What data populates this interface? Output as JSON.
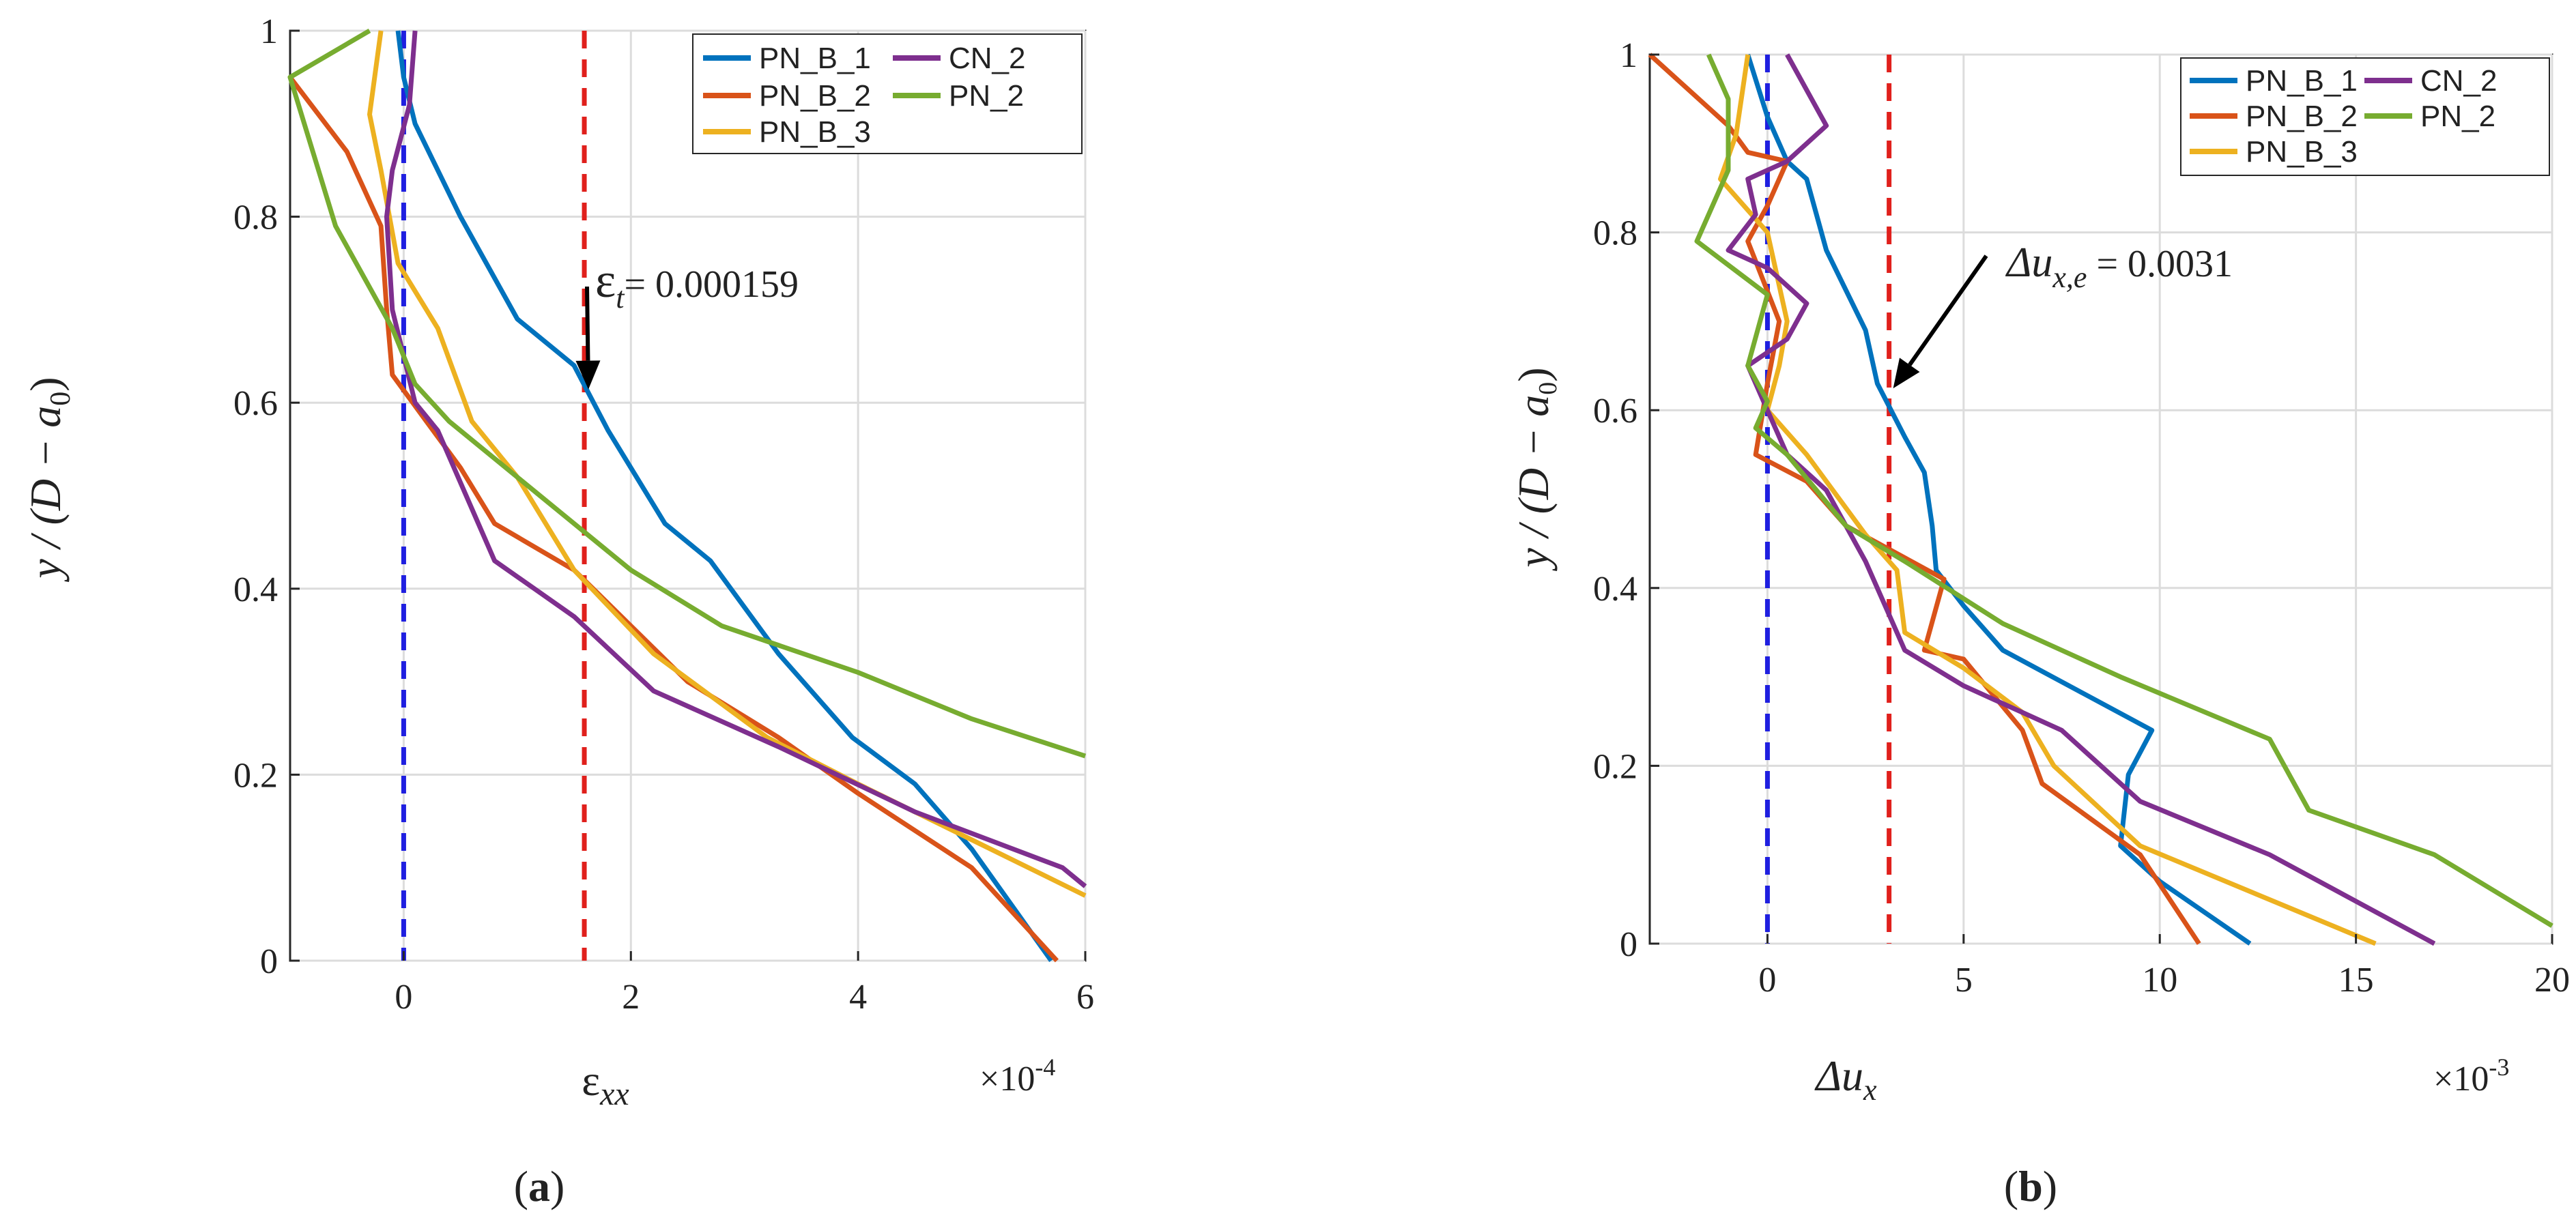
{
  "chart_data": [
    {
      "type": "line",
      "panel": "a",
      "caption": {
        "open": "(",
        "letter": "a",
        "close": ")"
      },
      "xlabel": {
        "base": "ε",
        "sub": "xx"
      },
      "ylabel": {
        "pre": "y / (D − a",
        "sub": "0",
        "post": ")"
      },
      "xlim": [
        -1,
        6
      ],
      "ylim": [
        0,
        1
      ],
      "xticks": [
        "0",
        "2",
        "4",
        "6"
      ],
      "xtick_values": [
        0,
        2,
        4,
        6
      ],
      "yticks": [
        "0",
        "0.2",
        "0.4",
        "0.6",
        "0.8",
        "1"
      ],
      "ytick_values": [
        0,
        0.2,
        0.4,
        0.6,
        0.8,
        1
      ],
      "multiplier": {
        "base": "×10",
        "exp": "-4"
      },
      "ref_lines": [
        {
          "x": 0,
          "color": "#1f1fe0"
        },
        {
          "x": 1.59,
          "color": "#e0201c"
        }
      ],
      "annotation": {
        "sym": "ε",
        "sub": "t",
        "text": "= 0.000159",
        "point": [
          1.59,
          0.61
        ]
      },
      "legend_position": "top-right",
      "series": [
        {
          "name": "PN_B_1",
          "color": "#0072BD",
          "points": [
            [
              -0.05,
              1.0
            ],
            [
              0.0,
              0.95
            ],
            [
              0.1,
              0.9
            ],
            [
              0.5,
              0.8
            ],
            [
              1.0,
              0.69
            ],
            [
              1.5,
              0.64
            ],
            [
              1.8,
              0.57
            ],
            [
              2.3,
              0.47
            ],
            [
              2.7,
              0.43
            ],
            [
              3.3,
              0.33
            ],
            [
              3.95,
              0.24
            ],
            [
              4.5,
              0.19
            ],
            [
              5.0,
              0.12
            ],
            [
              5.7,
              0.0
            ]
          ]
        },
        {
          "name": "PN_B_2",
          "color": "#D95319",
          "points": [
            [
              -1.0,
              0.95
            ],
            [
              -0.5,
              0.87
            ],
            [
              -0.2,
              0.79
            ],
            [
              -0.15,
              0.7
            ],
            [
              -0.1,
              0.63
            ],
            [
              0.2,
              0.58
            ],
            [
              0.5,
              0.53
            ],
            [
              0.8,
              0.47
            ],
            [
              1.5,
              0.42
            ],
            [
              2.5,
              0.3
            ],
            [
              3.3,
              0.24
            ],
            [
              4.0,
              0.18
            ],
            [
              5.0,
              0.1
            ],
            [
              5.75,
              0.0
            ]
          ]
        },
        {
          "name": "PN_B_3",
          "color": "#EDB120",
          "points": [
            [
              -0.2,
              1.0
            ],
            [
              -0.3,
              0.91
            ],
            [
              -0.2,
              0.85
            ],
            [
              -0.05,
              0.75
            ],
            [
              0.3,
              0.68
            ],
            [
              0.6,
              0.58
            ],
            [
              1.0,
              0.52
            ],
            [
              1.5,
              0.42
            ],
            [
              2.2,
              0.33
            ],
            [
              3.2,
              0.24
            ],
            [
              4.0,
              0.19
            ],
            [
              5.0,
              0.13
            ],
            [
              6.0,
              0.07
            ]
          ]
        },
        {
          "name": "CN_2",
          "color": "#7E2F8E",
          "points": [
            [
              0.1,
              1.0
            ],
            [
              0.05,
              0.92
            ],
            [
              -0.1,
              0.85
            ],
            [
              -0.15,
              0.8
            ],
            [
              -0.1,
              0.7
            ],
            [
              0.1,
              0.6
            ],
            [
              0.3,
              0.57
            ],
            [
              0.8,
              0.43
            ],
            [
              1.5,
              0.37
            ],
            [
              2.2,
              0.29
            ],
            [
              3.3,
              0.23
            ],
            [
              4.5,
              0.16
            ],
            [
              5.8,
              0.1
            ],
            [
              6.0,
              0.08
            ]
          ]
        },
        {
          "name": "PN_2",
          "color": "#77AC30",
          "points": [
            [
              -0.3,
              1.0
            ],
            [
              -1.0,
              0.95
            ],
            [
              -0.6,
              0.79
            ],
            [
              -0.1,
              0.68
            ],
            [
              0.1,
              0.62
            ],
            [
              0.4,
              0.58
            ],
            [
              1.2,
              0.5
            ],
            [
              2.0,
              0.42
            ],
            [
              2.8,
              0.36
            ],
            [
              4.0,
              0.31
            ],
            [
              5.0,
              0.26
            ],
            [
              6.0,
              0.22
            ]
          ]
        }
      ]
    },
    {
      "type": "line",
      "panel": "b",
      "caption": {
        "open": "(",
        "letter": "b",
        "close": ")"
      },
      "xlabel": {
        "base": "Δu",
        "sub": "x"
      },
      "ylabel": {
        "pre": "y / (D − a",
        "sub": "0",
        "post": ")"
      },
      "xlim": [
        -3,
        20
      ],
      "ylim": [
        0,
        1
      ],
      "xticks": [
        "0",
        "5",
        "10",
        "15",
        "20"
      ],
      "xtick_values": [
        0,
        5,
        10,
        15,
        20
      ],
      "yticks": [
        "0",
        "0.2",
        "0.4",
        "0.6",
        "0.8",
        "1"
      ],
      "ytick_values": [
        0,
        0.2,
        0.4,
        0.6,
        0.8,
        1
      ],
      "multiplier": {
        "base": "×10",
        "exp": "-3"
      },
      "ref_lines": [
        {
          "x": 0,
          "color": "#1f1fe0"
        },
        {
          "x": 3.1,
          "color": "#e0201c"
        }
      ],
      "annotation": {
        "sym": "Δu",
        "sub": "x,e",
        "text": " = 0.0031",
        "point": [
          3.1,
          0.62
        ]
      },
      "legend_position": "top-right",
      "series": [
        {
          "name": "PN_B_1",
          "color": "#0072BD",
          "points": [
            [
              -0.5,
              1.0
            ],
            [
              0.0,
              0.93
            ],
            [
              0.5,
              0.88
            ],
            [
              1.0,
              0.86
            ],
            [
              1.5,
              0.78
            ],
            [
              2.5,
              0.69
            ],
            [
              2.8,
              0.63
            ],
            [
              3.5,
              0.57
            ],
            [
              4.0,
              0.53
            ],
            [
              4.2,
              0.47
            ],
            [
              4.3,
              0.42
            ],
            [
              5.0,
              0.38
            ],
            [
              6.0,
              0.33
            ],
            [
              9.8,
              0.24
            ],
            [
              9.2,
              0.19
            ],
            [
              9.0,
              0.11
            ],
            [
              10.0,
              0.07
            ],
            [
              12.3,
              0.0
            ]
          ]
        },
        {
          "name": "PN_B_2",
          "color": "#D95319",
          "points": [
            [
              -3.0,
              1.0
            ],
            [
              -1.0,
              0.92
            ],
            [
              -0.5,
              0.89
            ],
            [
              0.5,
              0.88
            ],
            [
              0.0,
              0.83
            ],
            [
              -0.5,
              0.79
            ],
            [
              0.3,
              0.7
            ],
            [
              0.0,
              0.63
            ],
            [
              -0.3,
              0.55
            ],
            [
              1.0,
              0.52
            ],
            [
              2.0,
              0.47
            ],
            [
              4.5,
              0.41
            ],
            [
              4.0,
              0.33
            ],
            [
              5.0,
              0.32
            ],
            [
              6.5,
              0.24
            ],
            [
              7.0,
              0.18
            ],
            [
              9.5,
              0.1
            ],
            [
              11.0,
              0.0
            ]
          ]
        },
        {
          "name": "PN_B_3",
          "color": "#EDB120",
          "points": [
            [
              -0.5,
              1.0
            ],
            [
              -0.8,
              0.91
            ],
            [
              -1.2,
              0.86
            ],
            [
              0.0,
              0.8
            ],
            [
              0.5,
              0.7
            ],
            [
              0.3,
              0.65
            ],
            [
              0.0,
              0.6
            ],
            [
              1.0,
              0.55
            ],
            [
              2.5,
              0.46
            ],
            [
              3.3,
              0.42
            ],
            [
              3.5,
              0.35
            ],
            [
              5.0,
              0.31
            ],
            [
              6.5,
              0.26
            ],
            [
              7.3,
              0.2
            ],
            [
              9.5,
              0.11
            ],
            [
              15.5,
              0.0
            ]
          ]
        },
        {
          "name": "CN_2",
          "color": "#7E2F8E",
          "points": [
            [
              0.5,
              1.0
            ],
            [
              1.5,
              0.92
            ],
            [
              0.5,
              0.88
            ],
            [
              -0.5,
              0.86
            ],
            [
              -0.3,
              0.82
            ],
            [
              -1.0,
              0.78
            ],
            [
              0.0,
              0.76
            ],
            [
              1.0,
              0.72
            ],
            [
              0.5,
              0.68
            ],
            [
              -0.5,
              0.65
            ],
            [
              0.0,
              0.6
            ],
            [
              0.5,
              0.55
            ],
            [
              1.5,
              0.51
            ],
            [
              2.5,
              0.43
            ],
            [
              3.0,
              0.38
            ],
            [
              3.5,
              0.33
            ],
            [
              5.0,
              0.29
            ],
            [
              7.5,
              0.24
            ],
            [
              9.5,
              0.16
            ],
            [
              12.8,
              0.1
            ],
            [
              17.0,
              0.0
            ]
          ]
        },
        {
          "name": "PN_2",
          "color": "#77AC30",
          "points": [
            [
              -1.5,
              1.0
            ],
            [
              -1.0,
              0.95
            ],
            [
              -1.0,
              0.87
            ],
            [
              -1.8,
              0.79
            ],
            [
              0.0,
              0.73
            ],
            [
              -0.5,
              0.65
            ],
            [
              0.0,
              0.61
            ],
            [
              -0.3,
              0.58
            ],
            [
              0.5,
              0.55
            ],
            [
              2.0,
              0.47
            ],
            [
              3.5,
              0.43
            ],
            [
              6.0,
              0.36
            ],
            [
              9.0,
              0.3
            ],
            [
              12.8,
              0.23
            ],
            [
              13.8,
              0.15
            ],
            [
              17.0,
              0.1
            ],
            [
              20.0,
              0.02
            ]
          ]
        }
      ]
    }
  ]
}
